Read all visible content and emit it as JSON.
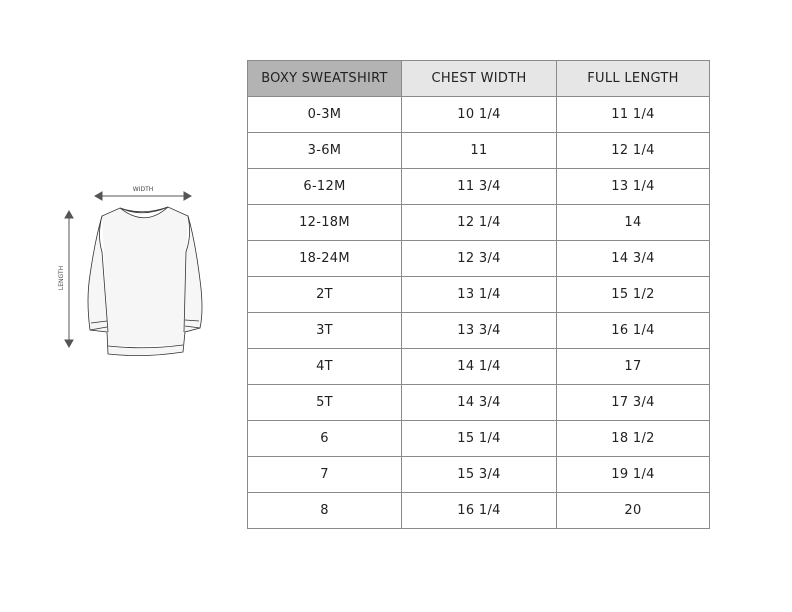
{
  "illustration": {
    "width_label": "WIDTH",
    "length_label": "LENGTH"
  },
  "table": {
    "headers": [
      "BOXY SWEATSHIRT",
      "CHEST WIDTH",
      "FULL LENGTH"
    ],
    "rows": [
      [
        "0-3M",
        "10 1/4",
        "11 1/4"
      ],
      [
        "3-6M",
        "11",
        "12 1/4"
      ],
      [
        "6-12M",
        "11 3/4",
        "13 1/4"
      ],
      [
        "12-18M",
        "12 1/4",
        "14"
      ],
      [
        "18-24M",
        "12 3/4",
        "14 3/4"
      ],
      [
        "2T",
        "13 1/4",
        "15 1/2"
      ],
      [
        "3T",
        "13 3/4",
        "16 1/4"
      ],
      [
        "4T",
        "14 1/4",
        "17"
      ],
      [
        "5T",
        "14 3/4",
        "17 3/4"
      ],
      [
        "6",
        "15 1/4",
        "18 1/2"
      ],
      [
        "7",
        "15 3/4",
        "19 1/4"
      ],
      [
        "8",
        "16 1/4",
        "20"
      ]
    ]
  }
}
